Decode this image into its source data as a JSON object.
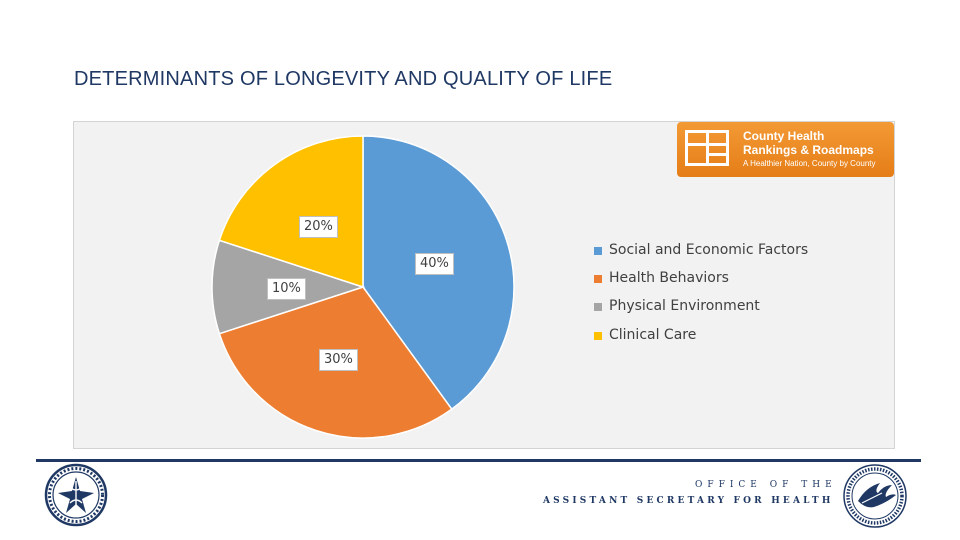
{
  "title": "DETERMINANTS OF LONGEVITY AND QUALITY OF LIFE",
  "chart_data": {
    "type": "pie",
    "title": "",
    "categories": [
      "Social and Economic Factors",
      "Health Behaviors",
      "Physical Environment",
      "Clinical Care"
    ],
    "values": [
      40,
      30,
      10,
      20
    ],
    "data_labels": [
      "40%",
      "30%",
      "10%",
      "20%"
    ],
    "colors": [
      "#5b9bd5",
      "#ed7d31",
      "#a5a5a5",
      "#ffc000"
    ],
    "legend_position": "right"
  },
  "logo": {
    "name_line1": "County Health",
    "name_line2": "Rankings & Roadmaps",
    "tagline": "A Healthier Nation, County by County",
    "color": "#ef8a23"
  },
  "footer": {
    "line1": "OFFICE OF THE",
    "line2": "ASSISTANT SECRETARY FOR HEALTH"
  }
}
